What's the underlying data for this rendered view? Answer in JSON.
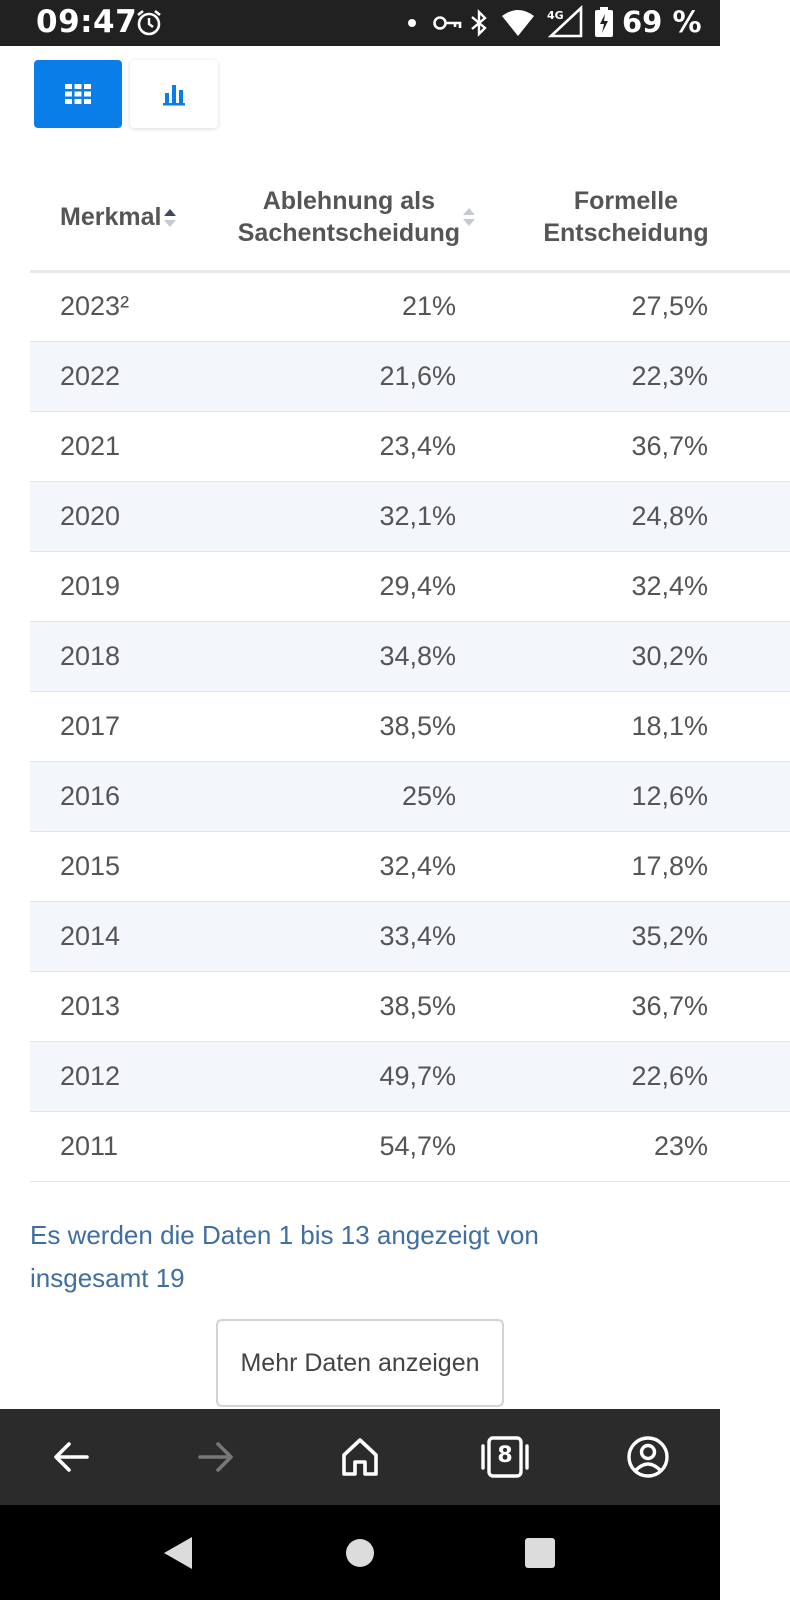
{
  "status": {
    "time": "09:47",
    "battery": "69 %",
    "network": "4G"
  },
  "view_toggle": {
    "table_icon": "grid-icon",
    "chart_icon": "bar-chart-icon",
    "active": "table"
  },
  "table": {
    "headers": {
      "col1": "Merkmal",
      "col2_line1": "Ablehnung als",
      "col2_line2": "Sachentscheidung",
      "col3_line1": "Formelle",
      "col3_line2": "Entscheidung"
    },
    "rows": [
      {
        "year": "2023²",
        "ablehnung": "21%",
        "formelle": "27,5%"
      },
      {
        "year": "2022",
        "ablehnung": "21,6%",
        "formelle": "22,3%"
      },
      {
        "year": "2021",
        "ablehnung": "23,4%",
        "formelle": "36,7%"
      },
      {
        "year": "2020",
        "ablehnung": "32,1%",
        "formelle": "24,8%"
      },
      {
        "year": "2019",
        "ablehnung": "29,4%",
        "formelle": "32,4%"
      },
      {
        "year": "2018",
        "ablehnung": "34,8%",
        "formelle": "30,2%"
      },
      {
        "year": "2017",
        "ablehnung": "38,5%",
        "formelle": "18,1%"
      },
      {
        "year": "2016",
        "ablehnung": "25%",
        "formelle": "12,6%"
      },
      {
        "year": "2015",
        "ablehnung": "32,4%",
        "formelle": "17,8%"
      },
      {
        "year": "2014",
        "ablehnung": "33,4%",
        "formelle": "35,2%"
      },
      {
        "year": "2013",
        "ablehnung": "38,5%",
        "formelle": "36,7%"
      },
      {
        "year": "2012",
        "ablehnung": "49,7%",
        "formelle": "22,6%"
      },
      {
        "year": "2011",
        "ablehnung": "54,7%",
        "formelle": "23%"
      }
    ]
  },
  "pagination": {
    "info": "Es werden die Daten 1 bis 13 angezeigt von insgesamt 19",
    "more_button": "Mehr Daten anzeigen"
  },
  "browser": {
    "tab_count": "8"
  },
  "colors": {
    "accent": "#0a7ee8",
    "link_text": "#3f6ea3",
    "row_alt": "#f3f6fa"
  }
}
